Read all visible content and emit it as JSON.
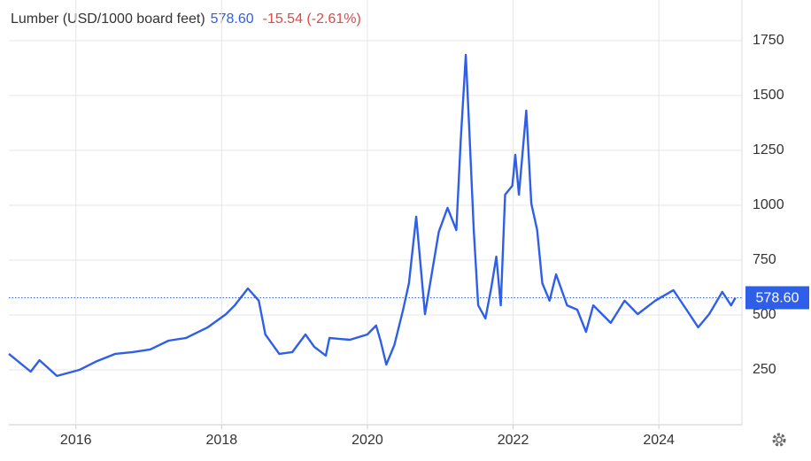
{
  "chart_data": {
    "type": "line",
    "title": "Lumber (USD/1000 board feet)",
    "last_label": "578.60",
    "change_label": "-15.54 (-2.61%)",
    "x": [
      2015.08,
      2015.38,
      2015.5,
      2015.74,
      2016.05,
      2016.29,
      2016.54,
      2016.78,
      2017.02,
      2017.27,
      2017.51,
      2017.81,
      2018.06,
      2018.18,
      2018.36,
      2018.51,
      2018.6,
      2018.79,
      2018.97,
      2019.15,
      2019.27,
      2019.43,
      2019.48,
      2019.76,
      2020.0,
      2020.12,
      2020.18,
      2020.26,
      2020.37,
      2020.49,
      2020.57,
      2020.67,
      2020.79,
      2020.98,
      2021.1,
      2021.22,
      2021.28,
      2021.35,
      2021.4,
      2021.46,
      2021.52,
      2021.62,
      2021.7,
      2021.77,
      2021.83,
      2021.89,
      2021.99,
      2022.03,
      2022.08,
      2022.18,
      2022.25,
      2022.33,
      2022.4,
      2022.5,
      2022.59,
      2022.74,
      2022.88,
      2023.0,
      2023.1,
      2023.34,
      2023.53,
      2023.71,
      2023.95,
      2024.2,
      2024.38,
      2024.54,
      2024.69,
      2024.87,
      2024.99,
      2025.05
    ],
    "series": [
      {
        "name": "Lumber",
        "color": "#2f5fe8",
        "values": [
          323,
          242,
          294,
          222,
          250,
          290,
          323,
          331,
          343,
          383,
          395,
          444,
          504,
          544,
          621,
          565,
          411,
          323,
          331,
          411,
          355,
          315,
          395,
          387,
          411,
          452,
          383,
          274,
          363,
          524,
          645,
          948,
          504,
          879,
          988,
          887,
          1290,
          1685,
          1331,
          887,
          544,
          484,
          625,
          766,
          544,
          1048,
          1089,
          1230,
          1048,
          1431,
          1008,
          887,
          645,
          565,
          685,
          544,
          524,
          423,
          544,
          464,
          565,
          504,
          565,
          613,
          524,
          444,
          504,
          605,
          544,
          578.6
        ]
      }
    ],
    "xlim": [
      2015.08,
      2025.14
    ],
    "xticks": [
      2016,
      2018,
      2020,
      2022,
      2024
    ],
    "ylim": [
      0,
      1935
    ],
    "yticks": [
      250,
      500,
      750,
      1000,
      1250,
      1500,
      1750
    ],
    "grid": true
  }
}
